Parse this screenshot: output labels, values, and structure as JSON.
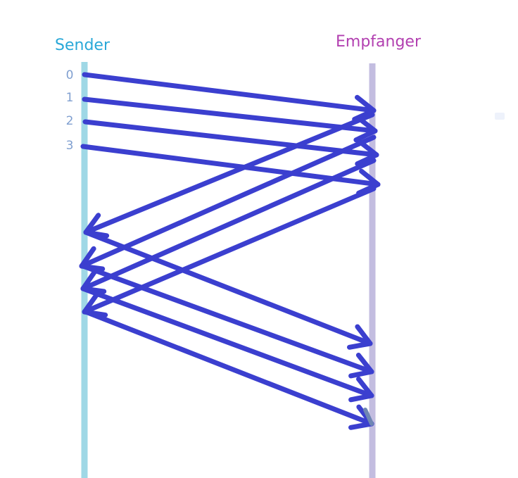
{
  "lanes": {
    "sender": {
      "label": "Sender",
      "color": "#9fd8e6",
      "label_color": "#29a8d8"
    },
    "receiver": {
      "label": "Empfanger",
      "color": "#c3bde0",
      "label_color": "#b23fb0"
    }
  },
  "sequence_numbers": [
    "0",
    "1",
    "2",
    "3"
  ],
  "arrow_color": "#3b3fcf"
}
